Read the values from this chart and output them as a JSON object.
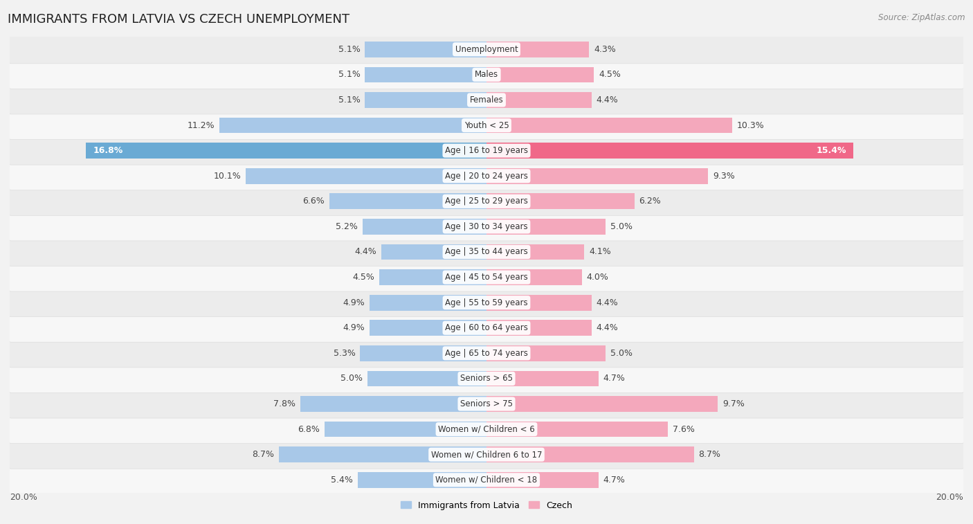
{
  "title": "IMMIGRANTS FROM LATVIA VS CZECH UNEMPLOYMENT",
  "source": "Source: ZipAtlas.com",
  "categories": [
    "Unemployment",
    "Males",
    "Females",
    "Youth < 25",
    "Age | 16 to 19 years",
    "Age | 20 to 24 years",
    "Age | 25 to 29 years",
    "Age | 30 to 34 years",
    "Age | 35 to 44 years",
    "Age | 45 to 54 years",
    "Age | 55 to 59 years",
    "Age | 60 to 64 years",
    "Age | 65 to 74 years",
    "Seniors > 65",
    "Seniors > 75",
    "Women w/ Children < 6",
    "Women w/ Children 6 to 17",
    "Women w/ Children < 18"
  ],
  "latvia_values": [
    5.1,
    5.1,
    5.1,
    11.2,
    16.8,
    10.1,
    6.6,
    5.2,
    4.4,
    4.5,
    4.9,
    4.9,
    5.3,
    5.0,
    7.8,
    6.8,
    8.7,
    5.4
  ],
  "czech_values": [
    4.3,
    4.5,
    4.4,
    10.3,
    15.4,
    9.3,
    6.2,
    5.0,
    4.1,
    4.0,
    4.4,
    4.4,
    5.0,
    4.7,
    9.7,
    7.6,
    8.7,
    4.7
  ],
  "latvia_color": "#a8c8e8",
  "czech_color": "#f4a8bc",
  "latvia_color_highlight": "#6aaad4",
  "czech_color_highlight": "#f06888",
  "bg_color": "#f2f2f2",
  "row_bg_light": "#f7f7f7",
  "row_bg_dark": "#ececec",
  "max_value": 20.0,
  "label_fontsize": 9.0,
  "title_fontsize": 13,
  "bar_height": 0.62,
  "legend_left": "Immigrants from Latvia",
  "legend_right": "Czech"
}
